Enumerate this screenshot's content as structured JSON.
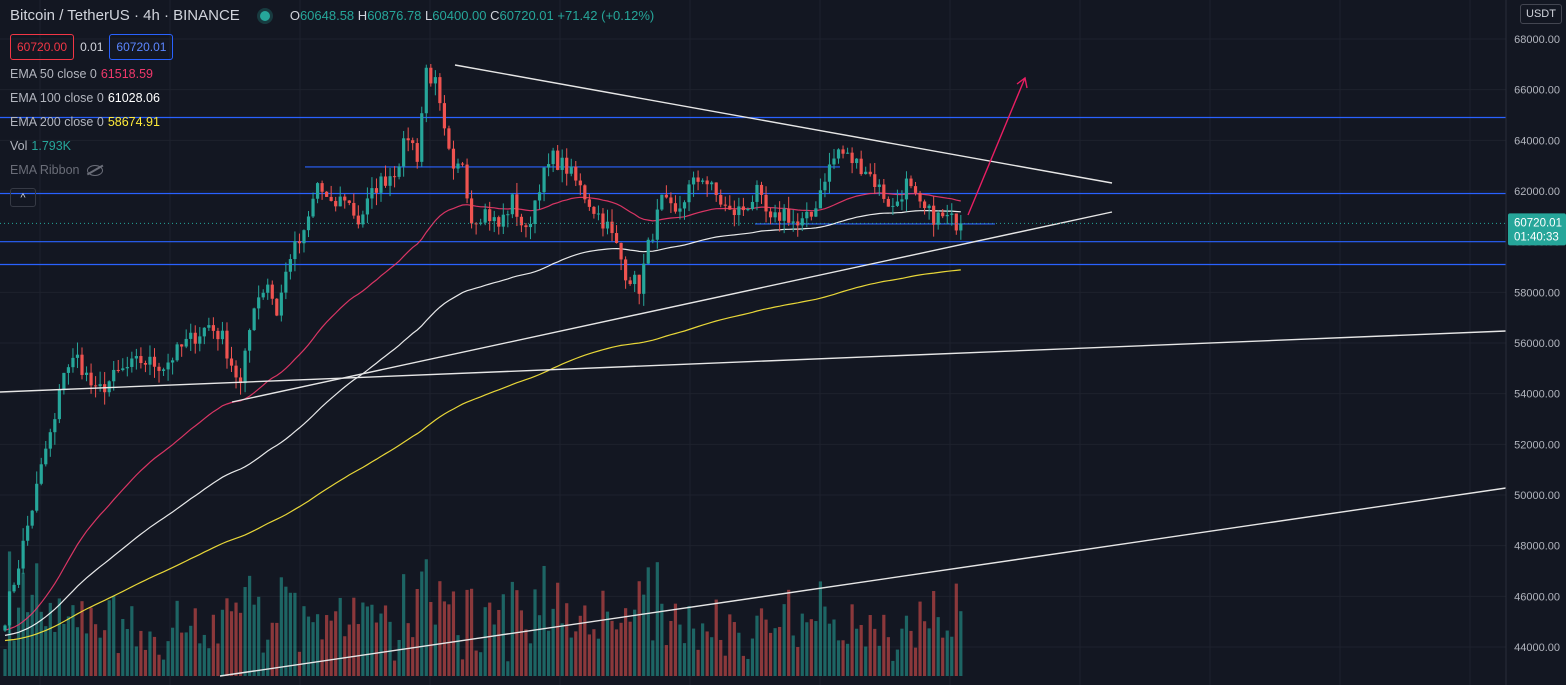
{
  "symbol": {
    "title": "Bitcoin / TetherUS · 4h · BINANCE",
    "ohlc": {
      "o_label": "O",
      "o": "60648.58",
      "h_label": "H",
      "h": "60876.78",
      "l_label": "L",
      "l": "60400.00",
      "c_label": "C",
      "c": "60720.01",
      "change": "+71.42 (+0.12%)"
    },
    "sell": "60720.00",
    "spread": "0.01",
    "buy": "60720.01"
  },
  "indicators": [
    {
      "name": "EMA 50 close 0",
      "value": "61518.59",
      "color": "#f0386b"
    },
    {
      "name": "EMA 100 close 0",
      "value": "61028.06",
      "color": "#ffffff"
    },
    {
      "name": "EMA 200 close 0",
      "value": "58674.91",
      "color": "#ffeb3b"
    },
    {
      "name": "Vol",
      "value": "1.793K",
      "color": "#26a69a"
    },
    {
      "name": "EMA Ribbon",
      "value": "",
      "color": "#6a6d78"
    }
  ],
  "currency": "USDT",
  "colors": {
    "up": "#26a69a",
    "down": "#ef5350",
    "bg": "#131722",
    "grid": "#1e222d",
    "hline": "#2962ff"
  },
  "chart_data": {
    "type": "candlestick",
    "y_ticks": [
      "68000.00",
      "66000.00",
      "64000.00",
      "62000.00",
      "60000.00",
      "58000.00",
      "56000.00",
      "54000.00",
      "52000.00",
      "50000.00",
      "48000.00",
      "46000.00",
      "44000.00"
    ],
    "ylim": [
      43200,
      68800
    ],
    "last_price": "60720.01",
    "countdown": "01:40:33",
    "horizontal_levels": [
      64900,
      62950,
      61900,
      60000,
      59100
    ],
    "candle_close_path": [
      [
        0,
        45200
      ],
      [
        3,
        47300
      ],
      [
        6,
        49500
      ],
      [
        9,
        51800
      ],
      [
        11,
        52900
      ],
      [
        13,
        55000
      ],
      [
        16,
        55400
      ],
      [
        20,
        54000
      ],
      [
        25,
        54800
      ],
      [
        30,
        55300
      ],
      [
        35,
        55100
      ],
      [
        40,
        56000
      ],
      [
        45,
        56700
      ],
      [
        48,
        56200
      ],
      [
        50,
        55200
      ],
      [
        52,
        54300
      ],
      [
        55,
        57600
      ],
      [
        58,
        58400
      ],
      [
        60,
        57200
      ],
      [
        63,
        59500
      ],
      [
        66,
        60200
      ],
      [
        69,
        62300
      ],
      [
        72,
        61300
      ],
      [
        75,
        61800
      ],
      [
        78,
        60800
      ],
      [
        82,
        62200
      ],
      [
        86,
        62800
      ],
      [
        89,
        64200
      ],
      [
        91,
        63400
      ],
      [
        93,
        66800
      ],
      [
        95,
        66200
      ],
      [
        97,
        64200
      ],
      [
        99,
        62600
      ],
      [
        101,
        63200
      ],
      [
        103,
        60900
      ],
      [
        106,
        61200
      ],
      [
        109,
        60600
      ],
      [
        112,
        61600
      ],
      [
        115,
        60300
      ],
      [
        118,
        62300
      ],
      [
        121,
        63300
      ],
      [
        124,
        62900
      ],
      [
        127,
        62100
      ],
      [
        130,
        61300
      ],
      [
        133,
        60600
      ],
      [
        135,
        59800
      ],
      [
        137,
        58800
      ],
      [
        140,
        58200
      ],
      [
        142,
        59800
      ],
      [
        145,
        61600
      ],
      [
        148,
        61000
      ],
      [
        151,
        62100
      ],
      [
        154,
        62600
      ],
      [
        157,
        61800
      ],
      [
        160,
        61100
      ],
      [
        163,
        61300
      ],
      [
        166,
        61900
      ],
      [
        169,
        60700
      ],
      [
        172,
        61200
      ],
      [
        175,
        60600
      ],
      [
        178,
        61000
      ],
      [
        181,
        62600
      ],
      [
        184,
        63600
      ],
      [
        187,
        63200
      ],
      [
        190,
        62900
      ],
      [
        193,
        62100
      ],
      [
        196,
        61300
      ],
      [
        199,
        62300
      ],
      [
        202,
        61300
      ],
      [
        205,
        61000
      ],
      [
        208,
        60900
      ],
      [
        211,
        60700
      ]
    ],
    "ema_periods": [
      50,
      100,
      200
    ],
    "drawings": {
      "resistance": [
        [
          455,
          65
        ],
        [
          1112,
          183
        ]
      ],
      "support_short": [
        [
          232,
          402
        ],
        [
          1112,
          212
        ]
      ],
      "support_long": [
        [
          0,
          392
        ],
        [
          1506,
          331
        ]
      ],
      "support_lower": [
        [
          220,
          676
        ],
        [
          1506,
          488
        ]
      ],
      "projection": [
        [
          968,
          215
        ],
        [
          1025,
          78
        ]
      ]
    }
  }
}
